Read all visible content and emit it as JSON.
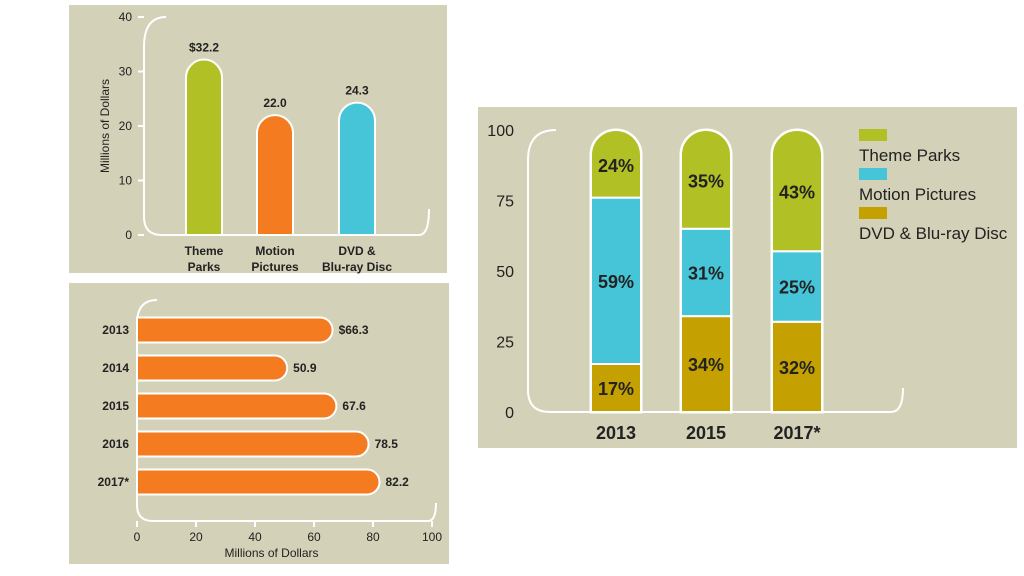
{
  "colors": {
    "panel": "#d3d1b7",
    "green": "#b1c024",
    "orange": "#f47b20",
    "cyan": "#47c5d8",
    "gold": "#c4a100",
    "axis": "#ffffff",
    "text": "#222222"
  },
  "chart_data": [
    {
      "type": "bar",
      "categories": [
        "Theme Parks",
        "Motion Pictures",
        "DVD & Blu-ray Disc"
      ],
      "category_lines": [
        [
          "Theme",
          "Parks"
        ],
        [
          "Motion",
          "Pictures"
        ],
        [
          "DVD &",
          "Blu-ray Disc"
        ]
      ],
      "values": [
        32.2,
        22.0,
        24.3
      ],
      "value_labels": [
        "$32.2",
        "22.0",
        "24.3"
      ],
      "ylabel": "Millions of Dollars",
      "ylim": [
        0,
        40
      ],
      "yticks": [
        "0",
        "10",
        "20",
        "30",
        "40"
      ],
      "colors": [
        "#b1c024",
        "#f47b20",
        "#47c5d8"
      ]
    },
    {
      "type": "bar",
      "orientation": "horizontal",
      "categories": [
        "2013",
        "2014",
        "2015",
        "2016",
        "2017*"
      ],
      "values": [
        66.3,
        50.9,
        67.6,
        78.5,
        82.2
      ],
      "value_labels": [
        "$66.3",
        "50.9",
        "67.6",
        "78.5",
        "82.2"
      ],
      "xlabel": "Millions of Dollars",
      "xlim": [
        0,
        100
      ],
      "xticks": [
        "0",
        "20",
        "40",
        "60",
        "80",
        "100"
      ],
      "color": "#f47b20"
    },
    {
      "type": "bar",
      "stacked": true,
      "categories": [
        "2013",
        "2015",
        "2017*"
      ],
      "series": [
        {
          "name": "DVD & Blu-ray Disc",
          "values": [
            17,
            34,
            32
          ],
          "labels": [
            "17%",
            "34%",
            "32%"
          ],
          "color": "#c4a100"
        },
        {
          "name": "Motion Pictures",
          "values": [
            59,
            31,
            25
          ],
          "labels": [
            "59%",
            "31%",
            "25%"
          ],
          "color": "#47c5d8"
        },
        {
          "name": "Theme Parks",
          "values": [
            24,
            35,
            43
          ],
          "labels": [
            "24%",
            "35%",
            "43%"
          ],
          "color": "#b1c024"
        }
      ],
      "legend": [
        {
          "name": "Theme Parks",
          "color": "#b1c024"
        },
        {
          "name": "Motion Pictures",
          "color": "#47c5d8"
        },
        {
          "name": "DVD & Blu-ray Disc",
          "color": "#c4a100"
        }
      ],
      "legend_position": "right",
      "ylim": [
        0,
        100
      ],
      "yticks": [
        "0",
        "25",
        "50",
        "75",
        "100"
      ]
    }
  ]
}
